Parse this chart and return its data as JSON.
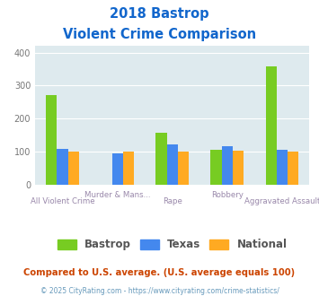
{
  "title_line1": "2018 Bastrop",
  "title_line2": "Violent Crime Comparison",
  "categories": [
    "All Violent Crime",
    "Murder & Mans...",
    "Rape",
    "Robbery",
    "Aggravated Assault"
  ],
  "series": {
    "Bastrop": [
      272,
      0,
      157,
      105,
      358
    ],
    "Texas": [
      110,
      96,
      122,
      116,
      107
    ],
    "National": [
      102,
      101,
      102,
      103,
      101
    ]
  },
  "colors": {
    "Bastrop": "#77cc22",
    "Texas": "#4488ee",
    "National": "#ffaa22"
  },
  "ylim": [
    0,
    420
  ],
  "yticks": [
    0,
    100,
    200,
    300,
    400
  ],
  "footnote1": "Compared to U.S. average. (U.S. average equals 100)",
  "footnote2": "© 2025 CityRating.com - https://www.cityrating.com/crime-statistics/",
  "title_color": "#1166cc",
  "footnote1_color": "#cc4400",
  "footnote2_color": "#6699bb",
  "plot_bg": "#deeaee"
}
